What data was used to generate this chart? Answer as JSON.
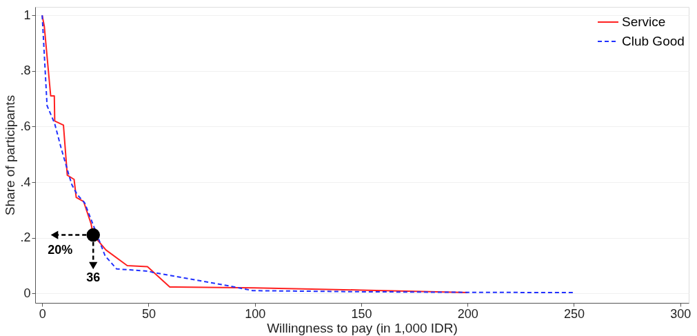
{
  "chart_data": {
    "type": "line",
    "xlabel": "Willingness to pay (in 1,000 IDR)",
    "ylabel": "Share of participants",
    "xlim": [
      -3.3,
      304
    ],
    "xticks": [
      0,
      50,
      100,
      150,
      200,
      250,
      300
    ],
    "ylim": [
      -0.034,
      1.03
    ],
    "yticks": [
      0,
      {
        "value": 0.2,
        "label": ".2"
      },
      {
        "value": 0.4,
        "label": ".4"
      },
      {
        "value": 0.6,
        "label": ".6"
      },
      {
        "value": 0.8,
        "label": ".8"
      },
      1
    ],
    "grid": "y",
    "legend": "top right",
    "series": [
      {
        "name": "Service",
        "color": "#ff2020",
        "line_style": "solid",
        "x": [
          0,
          1,
          4,
          5.7,
          5.9,
          10,
          11.8,
          15,
          16,
          19.5,
          23,
          24,
          30,
          40,
          49.5,
          60,
          100,
          150,
          200
        ],
        "values": [
          1.0,
          0.96,
          0.71,
          0.71,
          0.62,
          0.605,
          0.425,
          0.41,
          0.345,
          0.33,
          0.25,
          0.21,
          0.156,
          0.1,
          0.096,
          0.023,
          0.02,
          0.012,
          0.003
        ]
      },
      {
        "name": "Club Good",
        "color": "#2030ff",
        "line_style": "dashed",
        "x": [
          0,
          2.3,
          5.9,
          9,
          12.4,
          14,
          16.5,
          20,
          29.6,
          35,
          50,
          51.8,
          88,
          99,
          150,
          200,
          250
        ],
        "values": [
          1.0,
          0.675,
          0.61,
          0.52,
          0.43,
          0.39,
          0.355,
          0.325,
          0.135,
          0.088,
          0.08,
          0.076,
          0.027,
          0.01,
          0.006,
          0.004,
          0.003
        ]
      }
    ],
    "annotations": [
      {
        "text": "20%",
        "x": 24,
        "y": 0.21
      },
      {
        "text": "36",
        "x": 24,
        "y": 0.21
      }
    ]
  }
}
